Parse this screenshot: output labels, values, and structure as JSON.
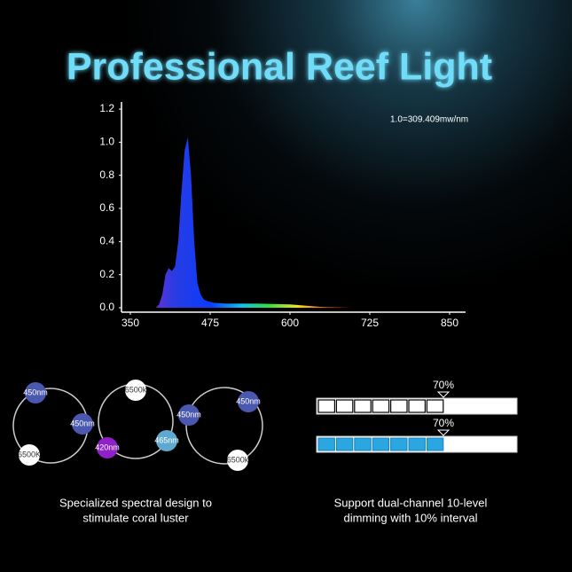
{
  "header": {
    "title": "Professional Reef Light"
  },
  "chart_data": {
    "type": "area",
    "annotation": "1.0=309.409mw/nm",
    "x": [
      390,
      395,
      400,
      405,
      410,
      415,
      420,
      425,
      430,
      435,
      440,
      445,
      450,
      455,
      460,
      465,
      470,
      480,
      500,
      550,
      600,
      650,
      700,
      750,
      800,
      850
    ],
    "values": [
      0,
      0.02,
      0.08,
      0.2,
      0.24,
      0.22,
      0.25,
      0.4,
      0.7,
      0.95,
      1.03,
      0.8,
      0.4,
      0.15,
      0.08,
      0.05,
      0.04,
      0.03,
      0.025,
      0.025,
      0.02,
      0.005,
      0,
      0,
      0,
      0
    ],
    "xlim": [
      350,
      850
    ],
    "xticks": [
      350,
      475,
      600,
      725,
      850
    ],
    "ylim": [
      0,
      1.2
    ],
    "yticks": [
      {
        "value": 0,
        "label": "0.0"
      },
      0.2,
      0.4,
      0.6,
      0.8,
      {
        "value": 1,
        "label": "1.0"
      },
      1.2
    ]
  },
  "rings": [
    {
      "labels": [
        "450nm",
        "450nm",
        "6500K"
      ]
    },
    {
      "labels": [
        "6500k",
        "420nm",
        "465nm"
      ]
    },
    {
      "labels": [
        "450nm",
        "450nm",
        "6500k"
      ]
    }
  ],
  "dimming": {
    "markers": [
      "70%",
      "70%"
    ]
  },
  "captions": [
    {
      "lines": [
        "Specialized spectral design to",
        "stimulate coral luster"
      ]
    },
    {
      "lines": [
        "Support dual-channel 10-level",
        "dimming with 10% interval"
      ]
    }
  ]
}
